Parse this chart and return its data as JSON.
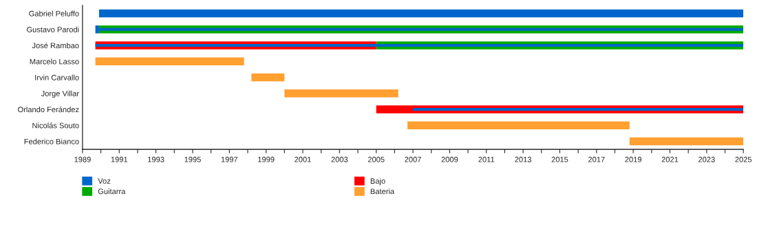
{
  "chart_data": {
    "type": "bar",
    "orientation": "horizontal",
    "categories": [
      "Gabriel Peluffo",
      "Gustavo Parodi",
      "José Rambao",
      "Marcelo Lasso",
      "Irvin Carvallo",
      "Jorge Villar",
      "Orlando Ferández",
      "Nicolás Souto",
      "Federico Bianco"
    ],
    "series": [
      {
        "name": "Voz",
        "color": "#0066cc",
        "base": [
          1989.9,
          1989.7,
          null,
          null,
          null,
          null,
          null,
          null,
          null
        ],
        "values": [
          35.1,
          0.2,
          null,
          null,
          null,
          null,
          null,
          null,
          null
        ]
      },
      {
        "name": "Guitarra",
        "color": "#00aa00",
        "base": [
          null,
          1989.9,
          2005,
          null,
          null,
          null,
          null,
          null,
          null
        ],
        "values": [
          null,
          35.1,
          20,
          null,
          null,
          null,
          null,
          null,
          null
        ]
      },
      {
        "name": "Bajo",
        "color": "#ff0000",
        "base": [
          null,
          null,
          1989.7,
          null,
          null,
          null,
          2005,
          null,
          null
        ],
        "values": [
          null,
          null,
          15.3,
          null,
          null,
          null,
          20,
          null,
          null
        ]
      },
      {
        "name": "Bateria",
        "color": "#ffa030",
        "base": [
          null,
          null,
          null,
          1989.7,
          1998.2,
          2000,
          null,
          2006.7,
          2018.8
        ],
        "values": [
          null,
          null,
          null,
          8.1,
          1.8,
          6.2,
          null,
          12.1,
          6.2
        ]
      },
      {
        "color": "#0066cc",
        "base": [
          null,
          1989.9,
          1989.7,
          null,
          null,
          null,
          2007,
          null,
          null
        ],
        "values": [
          null,
          35.1,
          35.3,
          null,
          null,
          null,
          18,
          null,
          null
        ]
      }
    ],
    "xlim": [
      1989,
      2025
    ],
    "xticks": [
      1989,
      {
        "value": 1990,
        "label": null
      },
      1991,
      {
        "value": 1992,
        "label": null
      },
      1993,
      {
        "value": 1994,
        "label": null
      },
      1995,
      {
        "value": 1996,
        "label": null
      },
      1997,
      {
        "value": 1998,
        "label": null
      },
      1999,
      {
        "value": 2000,
        "label": null
      },
      2001,
      {
        "value": 2002,
        "label": null
      },
      2003,
      {
        "value": 2004,
        "label": null
      },
      2005,
      {
        "value": 2006,
        "label": null
      },
      2007,
      {
        "value": 2008,
        "label": null
      },
      2009,
      {
        "value": 2010,
        "label": null
      },
      2011,
      {
        "value": 2012,
        "label": null
      },
      2013,
      {
        "value": 2014,
        "label": null
      },
      2015,
      {
        "value": 2016,
        "label": null
      },
      2017,
      {
        "value": 2018,
        "label": null
      },
      2019,
      {
        "value": 2020,
        "label": null
      },
      2021,
      {
        "value": 2022,
        "label": null
      },
      2023,
      {
        "value": 2024,
        "label": null
      },
      2025
    ],
    "grid": false,
    "legend": "bottom"
  }
}
